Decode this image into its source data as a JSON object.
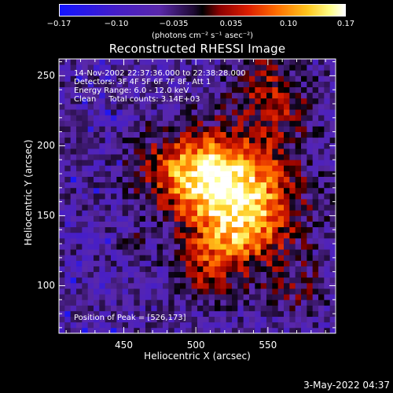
{
  "chart_data": {
    "type": "heatmap",
    "title": "Reconstructed RHESSI Image",
    "xlabel": "Heliocentric X (arcsec)",
    "ylabel": "Heliocentric Y (arcsec)",
    "xlim": [
      405,
      597
    ],
    "ylim": [
      66,
      262
    ],
    "x_ticks": [
      "450",
      "500",
      "550"
    ],
    "y_ticks": [
      "100",
      "150",
      "200",
      "250"
    ],
    "colorbar": {
      "unit_label": "(photons cm⁻² s⁻¹ asec⁻²)",
      "tick_labels": [
        "−0.17",
        "−0.10",
        "−0.035",
        "0.035",
        "0.10",
        "0.17"
      ],
      "range": [
        -0.17,
        0.17
      ]
    },
    "annotations": [
      "14-Nov-2002 22:37:36.000 to 22:38:28.000",
      "Detectors: 3F 4F 5F 6F 7F 8F, Att 1",
      "Energy Range: 6.0 - 12.0 keV",
      "Clean     Total counts: 3.14E+03"
    ],
    "peak_label": "Position of Peak = [526,173]",
    "peak_position": [
      526,
      173
    ],
    "peak_value": 0.17,
    "pixel_size_arcsec": 4
  },
  "footer": {
    "date": "3-May-2022 04:37"
  }
}
